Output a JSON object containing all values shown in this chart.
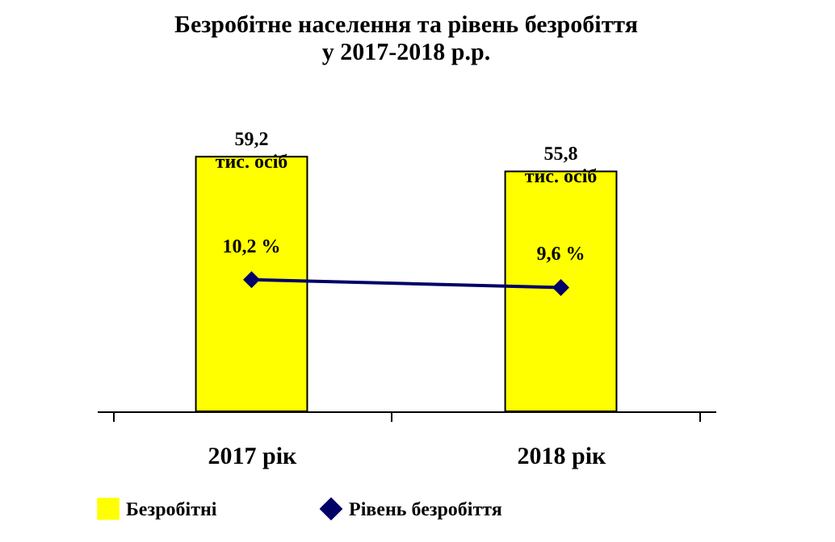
{
  "chart_data": {
    "type": "bar",
    "title": "Безробітне населення та рівень безробіття\nу 2017-2018 р.р.",
    "categories": [
      "2017 рік",
      "2018 рік"
    ],
    "series": [
      {
        "name": "Безробітні",
        "color": "#ffff00",
        "values": [
          59.2,
          55.8
        ],
        "value_labels": [
          "59,2\nтис. осіб",
          "55,8\nтис. осіб"
        ]
      },
      {
        "name": "Рівень безробіття",
        "type": "line",
        "axis": "y2",
        "color": "#000066",
        "marker": "diamond",
        "values": [
          10.2,
          9.6
        ],
        "value_labels": [
          "10,2 %",
          "9,6 %"
        ]
      }
    ],
    "y2lim": [
      0,
      20
    ],
    "legend": "bottom",
    "tick_labels": "x"
  }
}
